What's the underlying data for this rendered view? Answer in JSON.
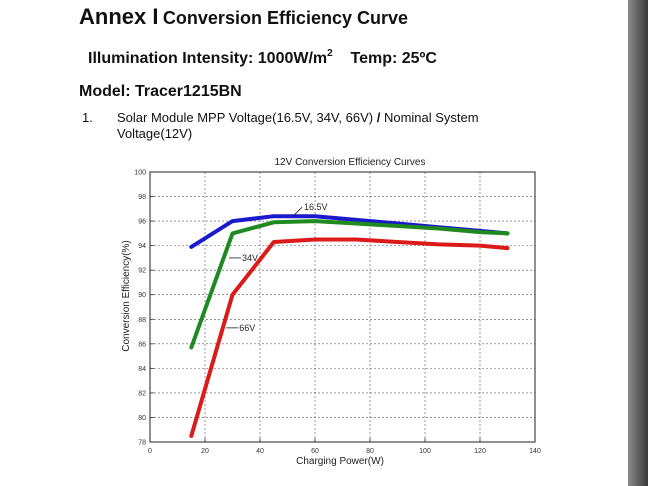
{
  "header": {
    "annex_label": "Annex I",
    "annex_title": "Conversion Efficiency Curve",
    "illumination_text": "Illumination Intensity: 1000W/m",
    "illumination_sup": "2",
    "temp_text": "Temp: 25ºC",
    "model": "Model: Tracer1215BN"
  },
  "section": {
    "number": "1.",
    "title_part1": "Solar Module MPP Voltage(16.5V, 34V, 66V)",
    "slash": "/",
    "title_part2": "Nominal System Voltage(12V)"
  },
  "colors": {
    "blue": "#1a1acc",
    "green": "#1f8a1f",
    "red": "#dd1a1a"
  },
  "chart_data": {
    "type": "line",
    "title": "12V Conversion Efficiency Curves",
    "xlabel": "Charging Power(W)",
    "ylabel": "Conversion Efficiency(%)",
    "xlim": [
      0,
      140
    ],
    "ylim": [
      78,
      100
    ],
    "xticks": [
      0,
      20,
      40,
      60,
      80,
      100,
      120,
      140
    ],
    "yticks": [
      78,
      80,
      82,
      84,
      86,
      88,
      90,
      92,
      94,
      96,
      98,
      100
    ],
    "grid": true,
    "series": [
      {
        "name": "16.5V",
        "color": "#1a1acc",
        "x": [
          15,
          30,
          45,
          60,
          75,
          90,
          105,
          120,
          130
        ],
        "y": [
          93.9,
          96.0,
          96.4,
          96.4,
          96.1,
          95.8,
          95.5,
          95.2,
          95.0
        ]
      },
      {
        "name": "34V",
        "color": "#1f8a1f",
        "x": [
          15,
          30,
          45,
          60,
          75,
          90,
          105,
          120,
          130
        ],
        "y": [
          85.7,
          95.0,
          95.9,
          96.0,
          95.8,
          95.6,
          95.4,
          95.1,
          95.0
        ]
      },
      {
        "name": "66V",
        "color": "#dd1a1a",
        "x": [
          15,
          30,
          45,
          60,
          75,
          90,
          105,
          120,
          130
        ],
        "y": [
          78.5,
          90.0,
          94.3,
          94.5,
          94.5,
          94.3,
          94.1,
          94.0,
          93.8
        ]
      }
    ],
    "annotations": [
      {
        "text": "16.5V",
        "series": "16.5V",
        "x": 52,
        "y": 96.4
      },
      {
        "text": "34V",
        "series": "34V",
        "x": 28,
        "y": 93.0
      },
      {
        "text": "66V",
        "series": "66V",
        "x": 27,
        "y": 87.3
      }
    ]
  }
}
